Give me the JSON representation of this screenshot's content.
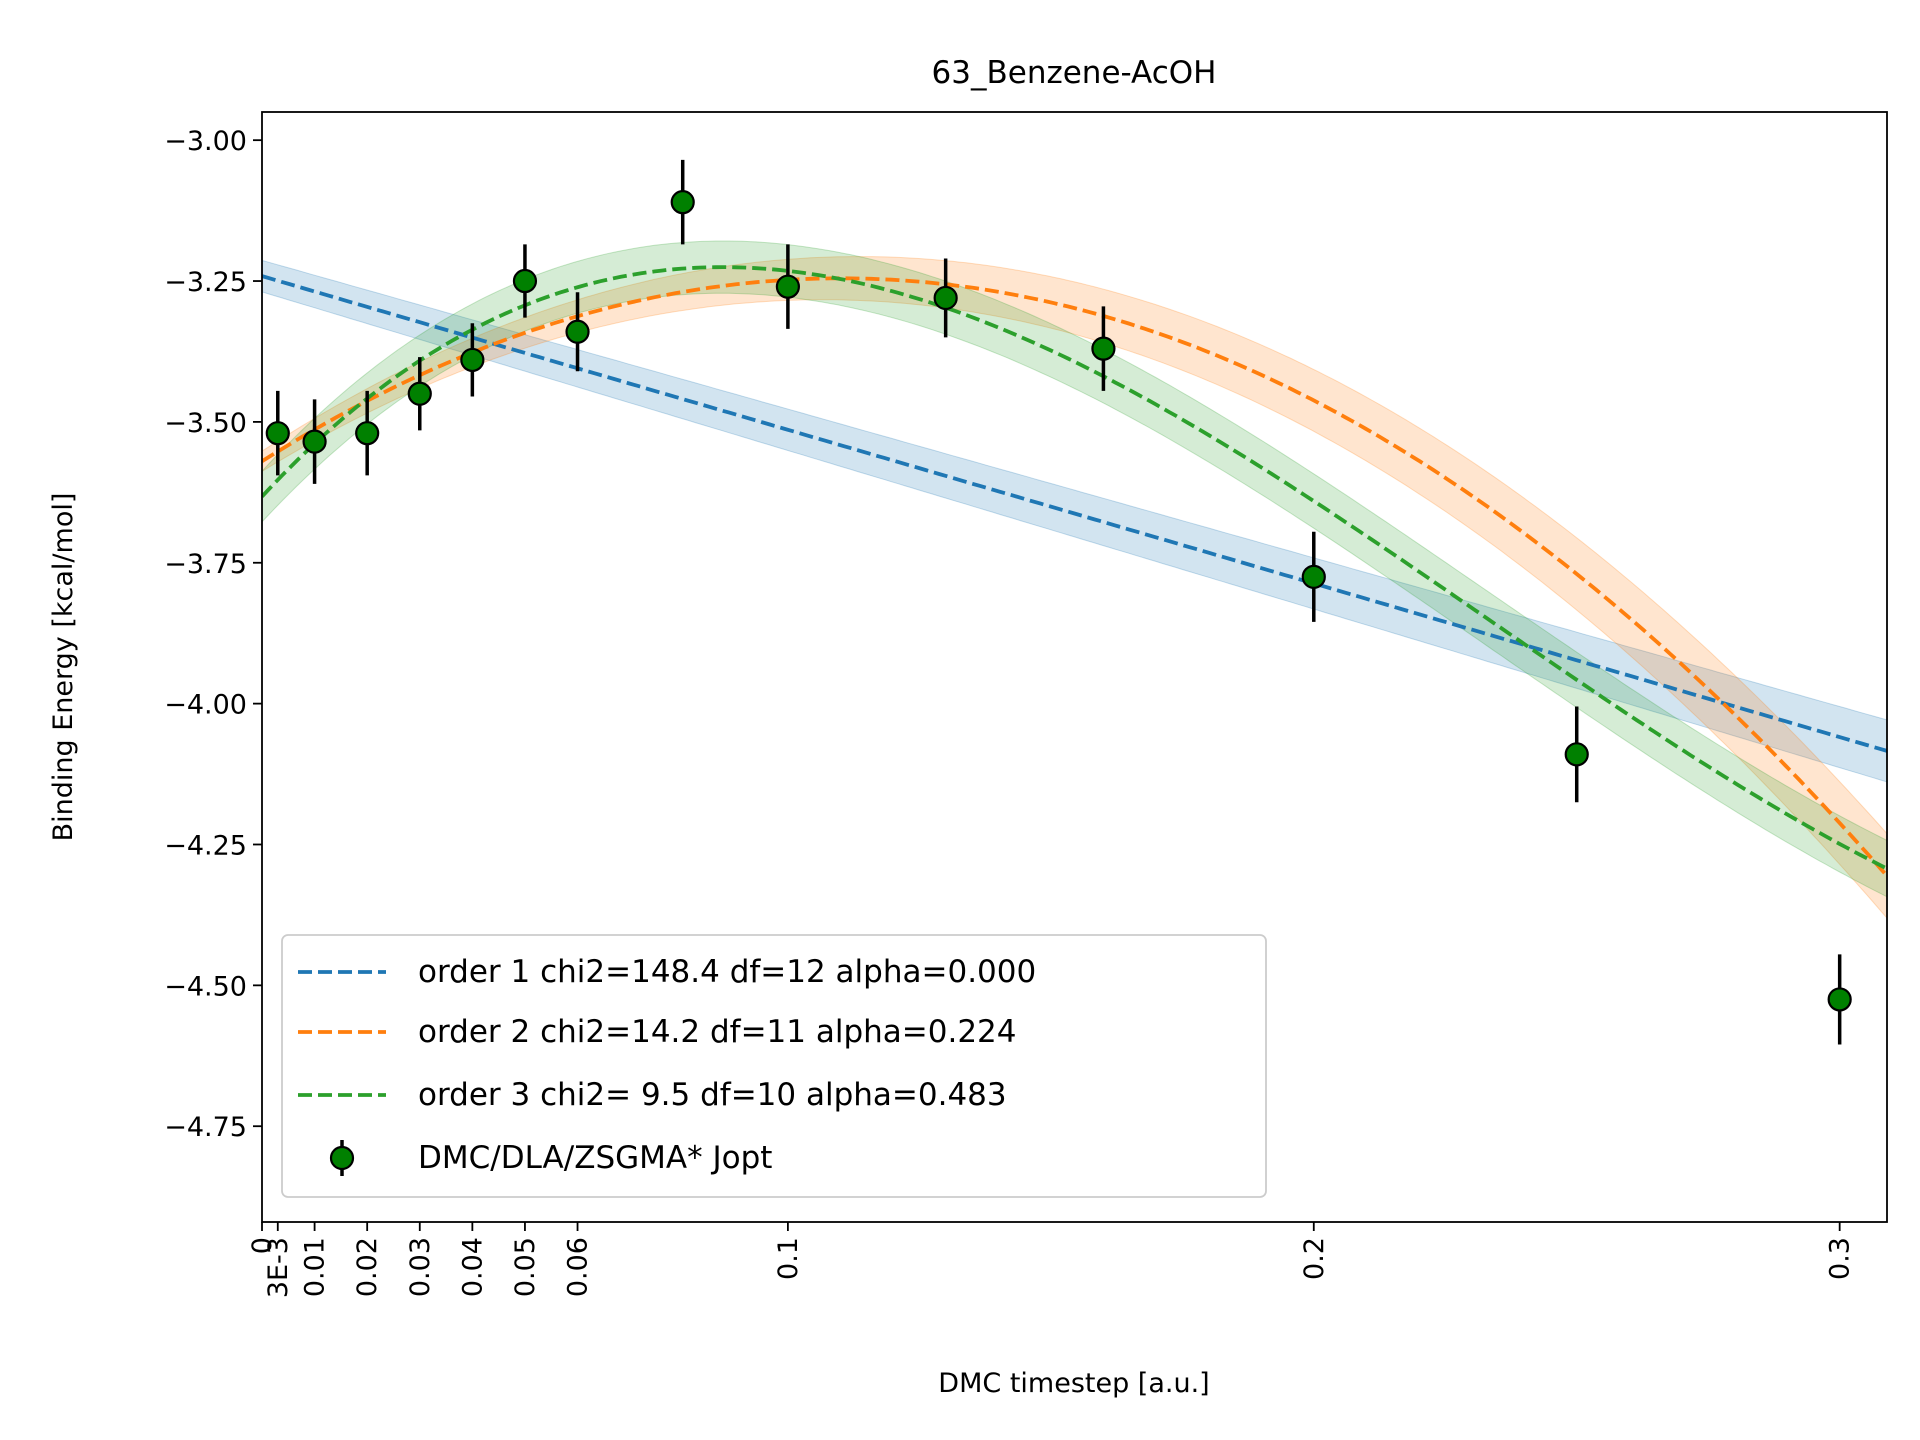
{
  "chart_data": {
    "type": "line",
    "title": "63_Benzene-AcOH",
    "xlabel": "DMC timestep [a.u.]",
    "ylabel": "Binding Energy [kcal/mol]",
    "xlim": [
      0,
      0.309
    ],
    "ylim": [
      -4.92,
      -2.95
    ],
    "x_ticks": [
      {
        "value": 0,
        "label": "0"
      },
      {
        "value": 0.003,
        "label": "3E-3"
      },
      {
        "value": 0.01,
        "label": "0.01"
      },
      {
        "value": 0.02,
        "label": "0.02"
      },
      {
        "value": 0.03,
        "label": "0.03"
      },
      {
        "value": 0.04,
        "label": "0.04"
      },
      {
        "value": 0.05,
        "label": "0.05"
      },
      {
        "value": 0.06,
        "label": "0.06"
      },
      {
        "value": 0.1,
        "label": "0.1"
      },
      {
        "value": 0.2,
        "label": "0.2"
      },
      {
        "value": 0.3,
        "label": "0.3"
      }
    ],
    "y_ticks": [
      {
        "value": -3.0,
        "label": "−3.00"
      },
      {
        "value": -3.25,
        "label": "−3.25"
      },
      {
        "value": -3.5,
        "label": "−3.50"
      },
      {
        "value": -3.75,
        "label": "−3.75"
      },
      {
        "value": -4.0,
        "label": "−4.00"
      },
      {
        "value": -4.25,
        "label": "−4.25"
      },
      {
        "value": -4.5,
        "label": "−4.50"
      },
      {
        "value": -4.75,
        "label": "−4.75"
      }
    ],
    "series": [
      {
        "name": "order 1 chi2=148.4 df=12 alpha=0.000",
        "color": "#1f77b4",
        "style": "dashed",
        "coefficients": [
          -3.2413,
          -2.727
        ],
        "band_halfwidth": [
          0.028,
          0.055
        ]
      },
      {
        "name": "order 2 chi2=14.2 df=11 alpha=0.224",
        "color": "#ff7f0e",
        "style": "dashed",
        "coefficients": [
          -3.5699,
          5.9,
          -26.8
        ],
        "band_halfwidth": [
          0.018,
          0.075
        ]
      },
      {
        "name": "order 3 chi2= 9.5 df=10 alpha=0.483",
        "color": "#2ca02c",
        "style": "dashed",
        "coefficients": [
          -3.6325,
          10.08,
          -70.9,
          101.5
        ],
        "band_halfwidth": [
          0.045,
          0.05
        ]
      }
    ],
    "points": {
      "name": "DMC/DLA/ZSGMA* Jopt",
      "marker_color": "#008000",
      "data": [
        {
          "x": 0.003,
          "y": -3.52,
          "err": 0.075
        },
        {
          "x": 0.01,
          "y": -3.535,
          "err": 0.075
        },
        {
          "x": 0.02,
          "y": -3.52,
          "err": 0.075
        },
        {
          "x": 0.03,
          "y": -3.45,
          "err": 0.065
        },
        {
          "x": 0.04,
          "y": -3.39,
          "err": 0.065
        },
        {
          "x": 0.05,
          "y": -3.25,
          "err": 0.065
        },
        {
          "x": 0.06,
          "y": -3.34,
          "err": 0.07
        },
        {
          "x": 0.08,
          "y": -3.11,
          "err": 0.075
        },
        {
          "x": 0.1,
          "y": -3.26,
          "err": 0.075
        },
        {
          "x": 0.13,
          "y": -3.28,
          "err": 0.07
        },
        {
          "x": 0.16,
          "y": -3.37,
          "err": 0.075
        },
        {
          "x": 0.2,
          "y": -3.775,
          "err": 0.08
        },
        {
          "x": 0.25,
          "y": -4.09,
          "err": 0.085
        },
        {
          "x": 0.3,
          "y": -4.525,
          "err": 0.08
        }
      ]
    },
    "legend_position": "lower-left"
  }
}
